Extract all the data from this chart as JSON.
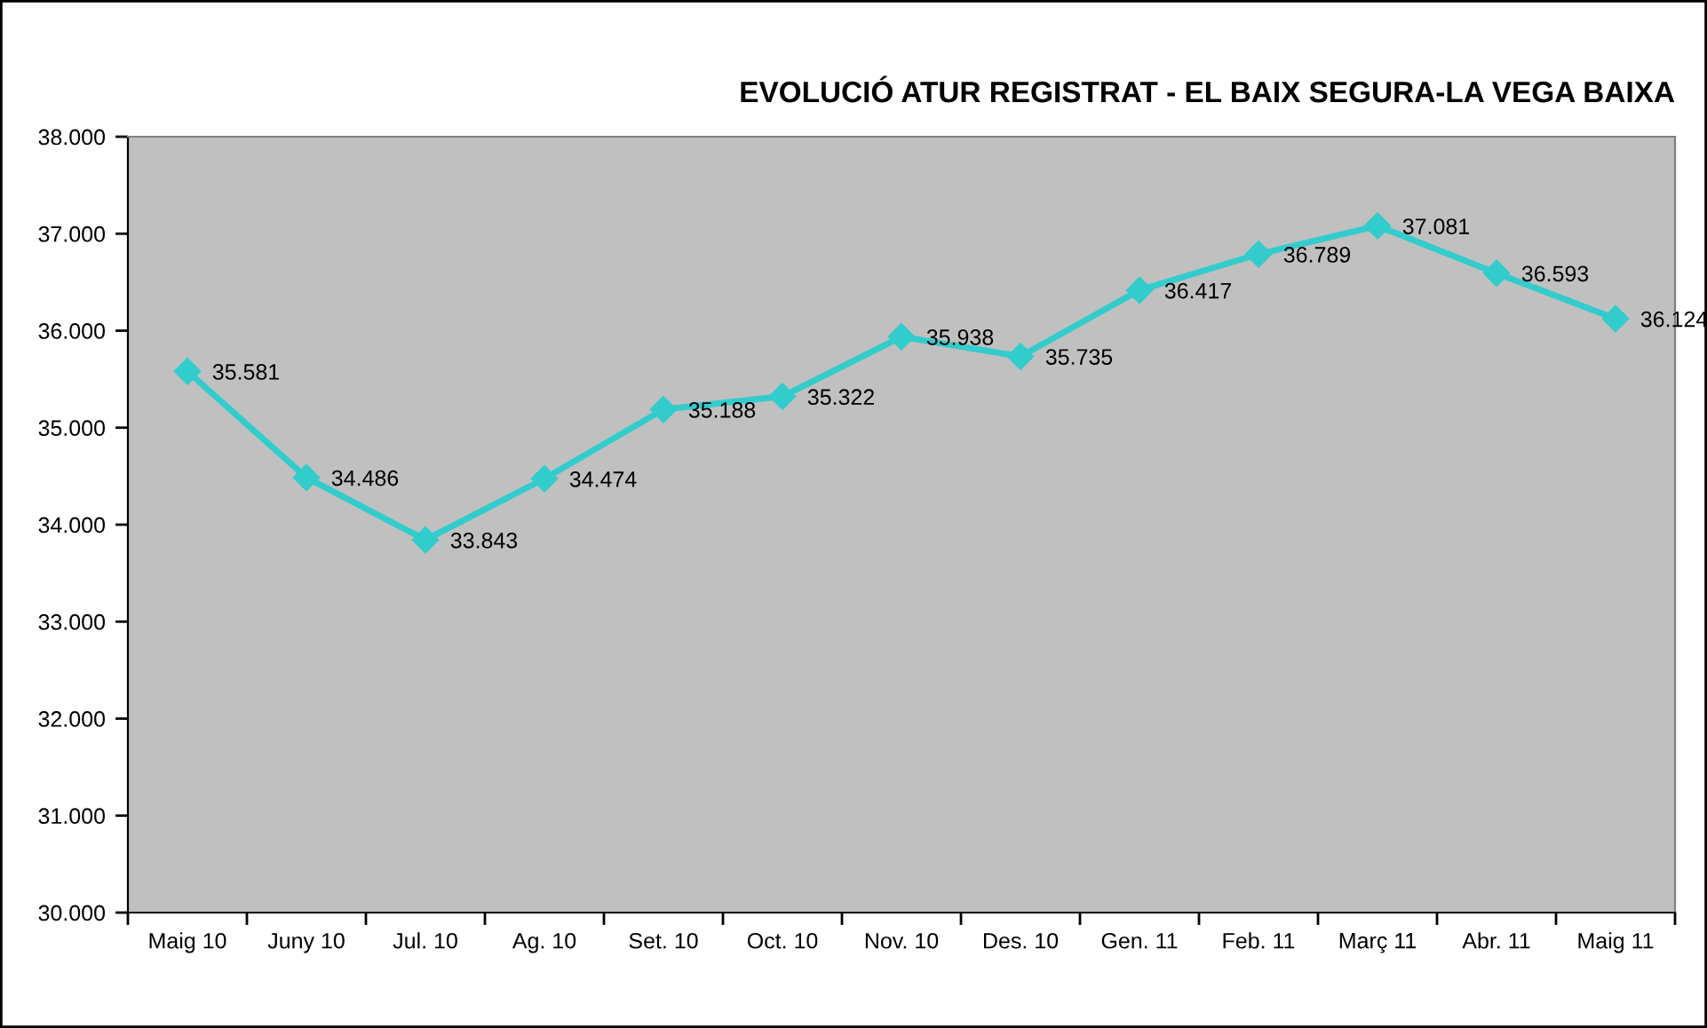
{
  "chart_data": {
    "type": "line",
    "title": "EVOLUCIÓ ATUR REGISTRAT - EL BAIX SEGURA-LA VEGA BAIXA",
    "categories": [
      "Maig 10",
      "Juny 10",
      "Jul. 10",
      "Ag. 10",
      "Set. 10",
      "Oct. 10",
      "Nov. 10",
      "Des. 10",
      "Gen. 11",
      "Feb. 11",
      "Març 11",
      "Abr. 11",
      "Maig 11"
    ],
    "values": [
      35581,
      34486,
      33843,
      34474,
      35188,
      35322,
      35938,
      35735,
      36417,
      36789,
      37081,
      36593,
      36124
    ],
    "value_labels": [
      "35.581",
      "34.486",
      "33.843",
      "34.474",
      "35.188",
      "35.322",
      "35.938",
      "35.735",
      "36.417",
      "36.789",
      "37.081",
      "36.593",
      "36.124"
    ],
    "color": "#33cccc",
    "marker": "diamond",
    "line_style": "solid",
    "ylim": [
      30000,
      38000
    ],
    "yticks": [
      {
        "value": 30000,
        "label": "30.000"
      },
      {
        "value": 31000,
        "label": "31.000"
      },
      {
        "value": 32000,
        "label": "32.000"
      },
      {
        "value": 33000,
        "label": "33.000"
      },
      {
        "value": 34000,
        "label": "34.000"
      },
      {
        "value": 35000,
        "label": "35.000"
      },
      {
        "value": 36000,
        "label": "36.000"
      },
      {
        "value": 37000,
        "label": "37.000"
      },
      {
        "value": 38000,
        "label": "38.000"
      }
    ]
  }
}
